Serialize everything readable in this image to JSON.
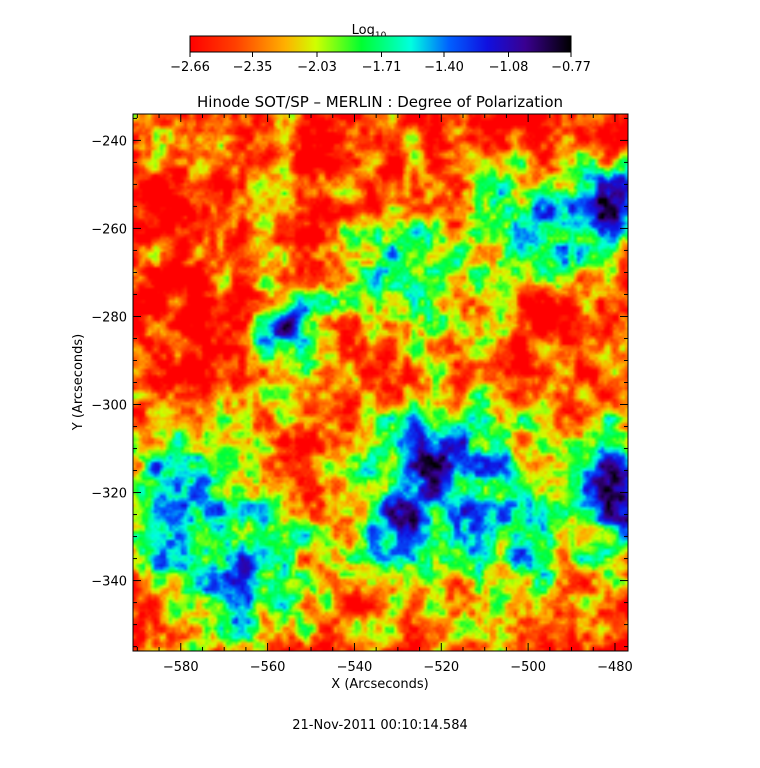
{
  "chart_data": {
    "type": "heatmap",
    "title": "Hinode SOT/SP – MERLIN : Degree of Polarization",
    "xlabel": "X (Arcseconds)",
    "ylabel": "Y (Arcseconds)",
    "xlim": [
      -591,
      -477
    ],
    "ylim": [
      -356,
      -234
    ],
    "xticks": [
      -580,
      -560,
      -540,
      -520,
      -500,
      -480
    ],
    "yticks": [
      -240,
      -260,
      -280,
      -300,
      -320,
      -340
    ],
    "colorbar": {
      "label_base": "Log",
      "label_sub": "10",
      "range": [
        -2.66,
        -0.77
      ],
      "ticks": [
        -2.66,
        -2.35,
        -2.03,
        -1.71,
        -1.4,
        -1.08,
        -0.77
      ],
      "colormap": "rainbow (red → yellow → green → cyan → blue → violet → black)"
    },
    "timestamp": "21-Nov-2011 00:10:14.584",
    "features": [
      {
        "x": -520,
        "y": -316,
        "value": -0.9,
        "radius": 11
      },
      {
        "x": -529,
        "y": -327,
        "value": -1.0,
        "radius": 6
      },
      {
        "x": -479,
        "y": -319,
        "value": -0.85,
        "radius": 9
      },
      {
        "x": -482,
        "y": -255,
        "value": -1.0,
        "radius": 7
      },
      {
        "x": -555,
        "y": -282,
        "value": -1.05,
        "radius": 6
      },
      {
        "x": -575,
        "y": -318,
        "value": -1.3,
        "radius": 12
      },
      {
        "x": -568,
        "y": -338,
        "value": -1.45,
        "radius": 14
      },
      {
        "x": -505,
        "y": -325,
        "value": -1.6,
        "radius": 15
      },
      {
        "x": -525,
        "y": -270,
        "value": -1.7,
        "radius": 12
      },
      {
        "x": -498,
        "y": -260,
        "value": -1.5,
        "radius": 9
      }
    ],
    "background_value": -2.55
  }
}
